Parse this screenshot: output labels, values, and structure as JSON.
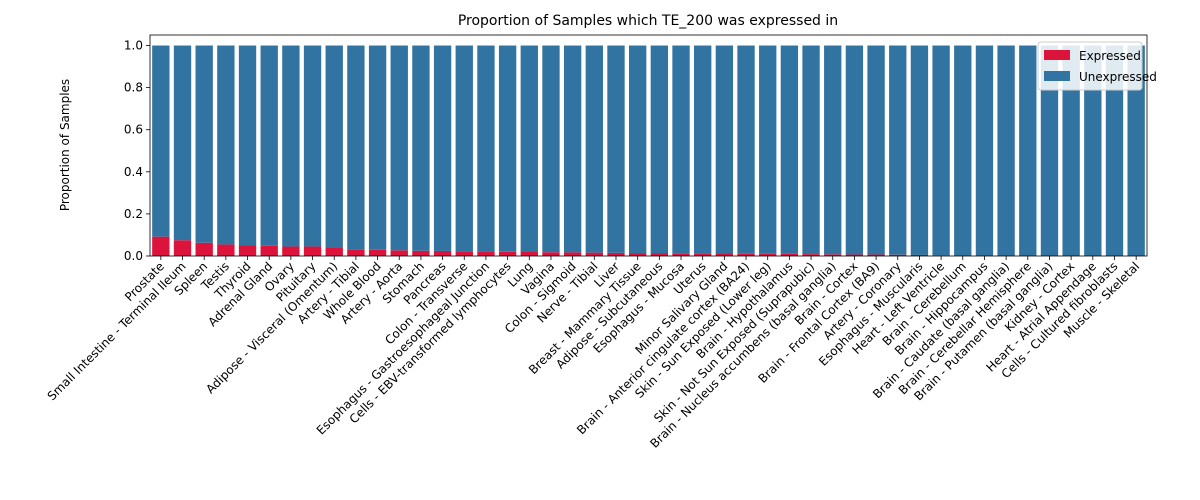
{
  "chart_data": {
    "type": "bar",
    "stacked": true,
    "title": "Proportion of Samples which TE_200 was expressed in",
    "xlabel": "",
    "ylabel": "Proportion of Samples",
    "ylim": [
      0,
      1.05
    ],
    "yticks": [
      "0.0",
      "0.2",
      "0.4",
      "0.6",
      "0.8",
      "1.0"
    ],
    "grid": false,
    "legend_position": "top-right",
    "categories": [
      "Prostate",
      "Small Intestine - Terminal Ileum",
      "Spleen",
      "Testis",
      "Thyroid",
      "Adrenal Gland",
      "Ovary",
      "Pituitary",
      "Adipose - Visceral (Omentum)",
      "Artery - Tibial",
      "Whole Blood",
      "Artery - Aorta",
      "Stomach",
      "Pancreas",
      "Colon - Transverse",
      "Esophagus - Gastroesophageal Junction",
      "Cells - EBV-transformed lymphocytes",
      "Lung",
      "Vagina",
      "Colon - Sigmoid",
      "Nerve - Tibial",
      "Liver",
      "Breast - Mammary Tissue",
      "Adipose - Subcutaneous",
      "Esophagus - Mucosa",
      "Uterus",
      "Minor Salivary Gland",
      "Brain - Anterior cingulate cortex (BA24)",
      "Skin - Sun Exposed (Lower leg)",
      "Brain - Hypothalamus",
      "Skin - Not Sun Exposed (Suprapubic)",
      "Brain - Nucleus accumbens (basal ganglia)",
      "Brain - Cortex",
      "Brain - Frontal Cortex (BA9)",
      "Artery - Coronary",
      "Esophagus - Muscularis",
      "Heart - Left Ventricle",
      "Brain - Cerebellum",
      "Brain - Hippocampus",
      "Brain - Caudate (basal ganglia)",
      "Brain - Cerebellar Hemisphere",
      "Brain - Putamen (basal ganglia)",
      "Kidney - Cortex",
      "Heart - Atrial Appendage",
      "Cells - Cultured fibroblasts",
      "Muscle - Skeletal"
    ],
    "series": [
      {
        "name": "Expressed",
        "color": "#dc143c",
        "values": [
          0.092,
          0.075,
          0.063,
          0.055,
          0.05,
          0.048,
          0.045,
          0.045,
          0.038,
          0.032,
          0.03,
          0.027,
          0.025,
          0.024,
          0.023,
          0.022,
          0.02,
          0.019,
          0.018,
          0.017,
          0.016,
          0.015,
          0.014,
          0.014,
          0.013,
          0.013,
          0.012,
          0.011,
          0.011,
          0.01,
          0.009,
          0.008,
          0.007,
          0.007,
          0.006,
          0.005,
          0.004,
          0.0,
          0.0,
          0.0,
          0.0,
          0.0,
          0.0,
          0.0,
          0.0,
          0.0
        ]
      },
      {
        "name": "Unexpressed",
        "color": "#3274a1",
        "values": [
          0.908,
          0.925,
          0.937,
          0.945,
          0.95,
          0.952,
          0.955,
          0.955,
          0.962,
          0.968,
          0.97,
          0.973,
          0.975,
          0.976,
          0.977,
          0.978,
          0.98,
          0.981,
          0.982,
          0.983,
          0.984,
          0.985,
          0.986,
          0.986,
          0.987,
          0.987,
          0.988,
          0.989,
          0.989,
          0.99,
          0.991,
          0.992,
          0.993,
          0.993,
          0.994,
          0.995,
          0.996,
          1.0,
          1.0,
          1.0,
          1.0,
          1.0,
          1.0,
          1.0,
          1.0,
          1.0
        ]
      }
    ]
  }
}
